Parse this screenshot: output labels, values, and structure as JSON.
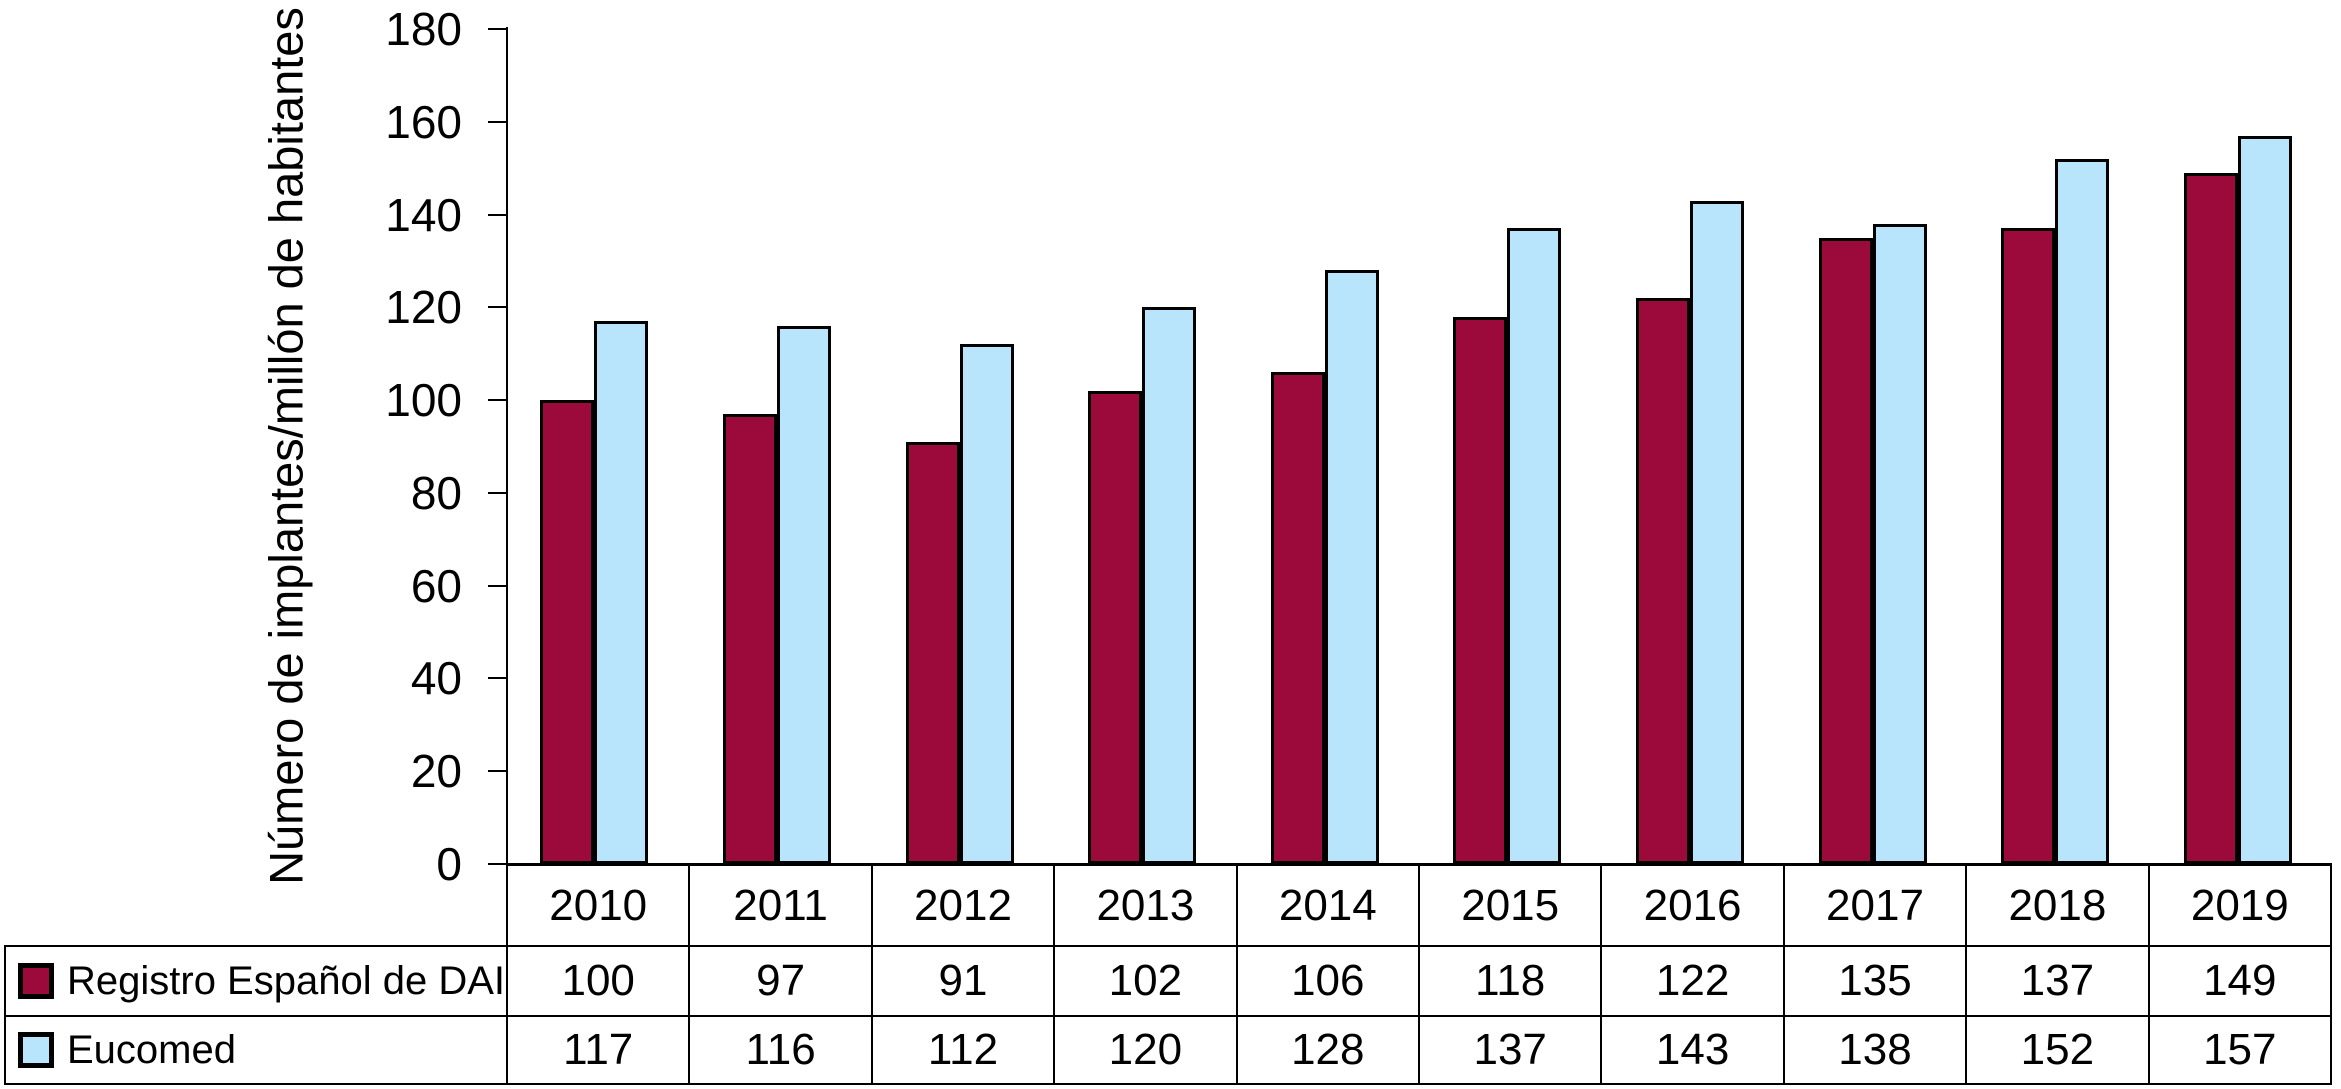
{
  "chart_data": {
    "type": "bar",
    "title": "",
    "ylabel": "Número de implantes/millón de habitantes",
    "xlabel": "",
    "ylim": [
      0,
      180
    ],
    "ytick_interval": 20,
    "yticks": [
      0,
      20,
      40,
      60,
      80,
      100,
      120,
      140,
      160,
      180
    ],
    "categories": [
      "2010",
      "2011",
      "2012",
      "2013",
      "2014",
      "2015",
      "2016",
      "2017",
      "2018",
      "2019"
    ],
    "series": [
      {
        "name": "Registro Español de DAI",
        "color": "#9C0A3C",
        "border_color": "#000000",
        "values": [
          100,
          97,
          91,
          102,
          106,
          118,
          122,
          135,
          137,
          149
        ]
      },
      {
        "name": "Eucomed",
        "color": "#B8E4FC",
        "border_color": "#000000",
        "values": [
          117,
          116,
          112,
          120,
          128,
          137,
          143,
          138,
          152,
          157
        ]
      }
    ],
    "grid": false,
    "legend_position": "data-table-left",
    "axis_color": "#000000",
    "background": "#FFFFFF"
  }
}
